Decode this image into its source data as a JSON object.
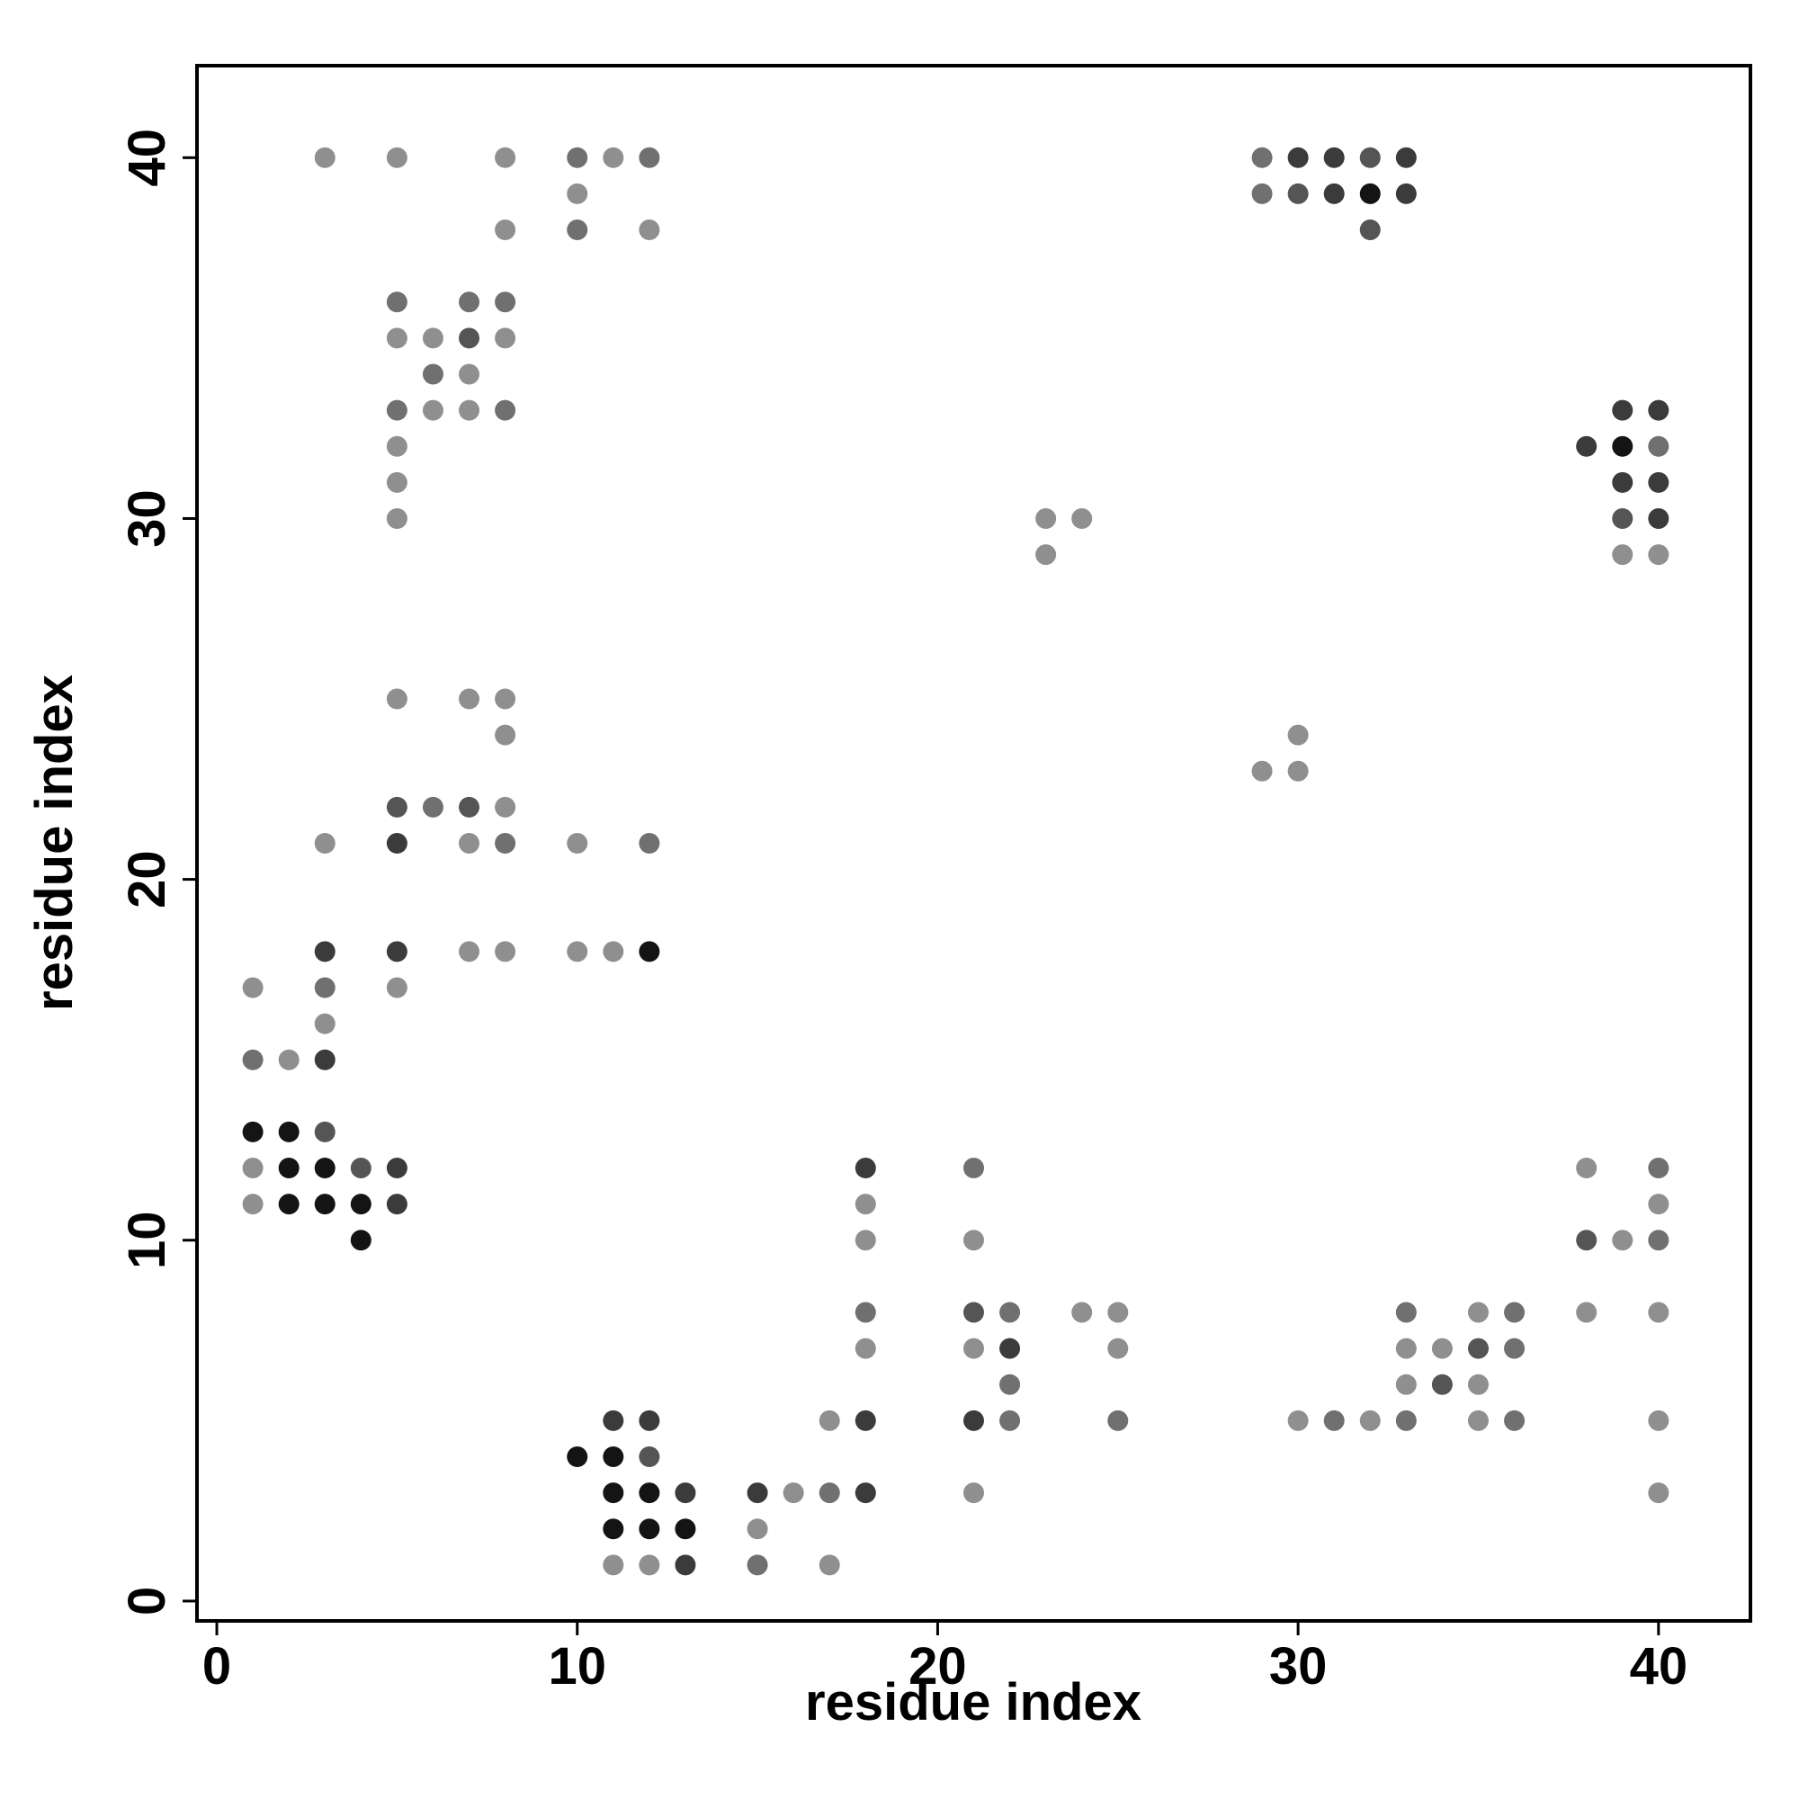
{
  "chart_data": {
    "type": "scatter",
    "x_label": "residue index",
    "y_label": "residue index",
    "xlim": [
      -0.55,
      42.55
    ],
    "ylim": [
      -0.55,
      42.55
    ],
    "xticks": [
      0,
      10,
      20,
      30,
      40
    ],
    "yticks": [
      0,
      10,
      20,
      30,
      40
    ],
    "grid": false,
    "series": [
      {
        "x": [
          3,
          5,
          8,
          10,
          11,
          12,
          29,
          30,
          31,
          32,
          33,
          10,
          29,
          30,
          31,
          32,
          33,
          8,
          10,
          12,
          32,
          5,
          7,
          8,
          5,
          6,
          7,
          8,
          6,
          7,
          5,
          6,
          7,
          8,
          39,
          40,
          5,
          38,
          39,
          40,
          5,
          39,
          40,
          5,
          23,
          24,
          39,
          40,
          23,
          39,
          40,
          5,
          7,
          8,
          8,
          30,
          29,
          30,
          5,
          6,
          7,
          8,
          3,
          5,
          7,
          8,
          10,
          12,
          3,
          5,
          7,
          8,
          10,
          11,
          12,
          1,
          3,
          5,
          3,
          1,
          2,
          3,
          1,
          2,
          3,
          1,
          2,
          3,
          4,
          5,
          18,
          21,
          38,
          40,
          1,
          2,
          3,
          4,
          5,
          18,
          40,
          4,
          18,
          21,
          38,
          39,
          40,
          18,
          21,
          22,
          24,
          25,
          33,
          35,
          36,
          38,
          40,
          18,
          21,
          22,
          25,
          33,
          34,
          35,
          36,
          22,
          33,
          34,
          35,
          11,
          12,
          17,
          18,
          21,
          22,
          25,
          30,
          31,
          32,
          33,
          35,
          36,
          40,
          10,
          11,
          12,
          11,
          12,
          13,
          15,
          16,
          17,
          18,
          21,
          40,
          11,
          12,
          13,
          15,
          11,
          12,
          13,
          15,
          17
        ],
        "values": [
          40,
          40,
          40,
          40,
          40,
          40,
          40,
          40,
          40,
          40,
          40,
          39,
          39,
          39,
          39,
          39,
          39,
          38,
          38,
          38,
          38,
          36,
          36,
          36,
          35,
          35,
          35,
          35,
          34,
          34,
          33,
          33,
          33,
          33,
          33,
          33,
          32,
          32,
          32,
          32,
          31,
          31,
          31,
          30,
          30,
          30,
          30,
          30,
          29,
          29,
          29,
          25,
          25,
          25,
          24,
          24,
          23,
          23,
          22,
          22,
          22,
          22,
          21,
          21,
          21,
          21,
          21,
          21,
          18,
          18,
          18,
          18,
          18,
          18,
          18,
          17,
          17,
          17,
          16,
          15,
          15,
          15,
          13,
          13,
          13,
          12,
          12,
          12,
          12,
          12,
          12,
          12,
          12,
          12,
          11,
          11,
          11,
          11,
          11,
          11,
          11,
          10,
          10,
          10,
          10,
          10,
          10,
          8,
          8,
          8,
          8,
          8,
          8,
          8,
          8,
          8,
          8,
          7,
          7,
          7,
          7,
          7,
          7,
          7,
          7,
          6,
          6,
          6,
          6,
          5,
          5,
          5,
          5,
          5,
          5,
          5,
          5,
          5,
          5,
          5,
          5,
          5,
          5,
          4,
          4,
          4,
          3,
          3,
          3,
          3,
          3,
          3,
          3,
          3,
          3,
          2,
          2,
          2,
          2,
          1,
          1,
          1,
          1,
          1
        ],
        "colors": [
          "#8f8f8f",
          "#8f8f8f",
          "#8f8f8f",
          "#707070",
          "#8f8f8f",
          "#707070",
          "#707070",
          "#3b3b3b",
          "#3b3b3b",
          "#555555",
          "#3b3b3b",
          "#8f8f8f",
          "#707070",
          "#555555",
          "#3b3b3b",
          "#141414",
          "#3b3b3b",
          "#8f8f8f",
          "#707070",
          "#8f8f8f",
          "#555555",
          "#707070",
          "#707070",
          "#707070",
          "#8f8f8f",
          "#8f8f8f",
          "#555555",
          "#8f8f8f",
          "#707070",
          "#8f8f8f",
          "#707070",
          "#8f8f8f",
          "#8f8f8f",
          "#707070",
          "#3b3b3b",
          "#3b3b3b",
          "#8f8f8f",
          "#3b3b3b",
          "#141414",
          "#707070",
          "#8f8f8f",
          "#3b3b3b",
          "#3b3b3b",
          "#8f8f8f",
          "#8f8f8f",
          "#8f8f8f",
          "#555555",
          "#3b3b3b",
          "#8f8f8f",
          "#8f8f8f",
          "#8f8f8f",
          "#8f8f8f",
          "#8f8f8f",
          "#8f8f8f",
          "#8f8f8f",
          "#8f8f8f",
          "#8f8f8f",
          "#8f8f8f",
          "#555555",
          "#707070",
          "#555555",
          "#8f8f8f",
          "#8f8f8f",
          "#3b3b3b",
          "#8f8f8f",
          "#707070",
          "#8f8f8f",
          "#707070",
          "#3b3b3b",
          "#3b3b3b",
          "#8f8f8f",
          "#8f8f8f",
          "#8f8f8f",
          "#8f8f8f",
          "#141414",
          "#8f8f8f",
          "#707070",
          "#8f8f8f",
          "#8f8f8f",
          "#707070",
          "#8f8f8f",
          "#3b3b3b",
          "#141414",
          "#141414",
          "#555555",
          "#8f8f8f",
          "#141414",
          "#141414",
          "#555555",
          "#3b3b3b",
          "#3b3b3b",
          "#707070",
          "#8f8f8f",
          "#707070",
          "#8f8f8f",
          "#141414",
          "#141414",
          "#141414",
          "#3b3b3b",
          "#8f8f8f",
          "#8f8f8f",
          "#141414",
          "#8f8f8f",
          "#8f8f8f",
          "#555555",
          "#8f8f8f",
          "#707070",
          "#707070",
          "#555555",
          "#707070",
          "#8f8f8f",
          "#8f8f8f",
          "#707070",
          "#8f8f8f",
          "#707070",
          "#8f8f8f",
          "#8f8f8f",
          "#8f8f8f",
          "#8f8f8f",
          "#3b3b3b",
          "#8f8f8f",
          "#8f8f8f",
          "#8f8f8f",
          "#555555",
          "#707070",
          "#707070",
          "#8f8f8f",
          "#555555",
          "#8f8f8f",
          "#3b3b3b",
          "#3b3b3b",
          "#8f8f8f",
          "#3b3b3b",
          "#3b3b3b",
          "#707070",
          "#707070",
          "#8f8f8f",
          "#707070",
          "#8f8f8f",
          "#707070",
          "#8f8f8f",
          "#707070",
          "#8f8f8f",
          "#141414",
          "#141414",
          "#555555",
          "#141414",
          "#141414",
          "#3b3b3b",
          "#3b3b3b",
          "#8f8f8f",
          "#707070",
          "#3b3b3b",
          "#8f8f8f",
          "#8f8f8f",
          "#141414",
          "#141414",
          "#141414",
          "#8f8f8f",
          "#8f8f8f",
          "#8f8f8f",
          "#3b3b3b",
          "#707070",
          "#8f8f8f"
        ]
      }
    ]
  }
}
